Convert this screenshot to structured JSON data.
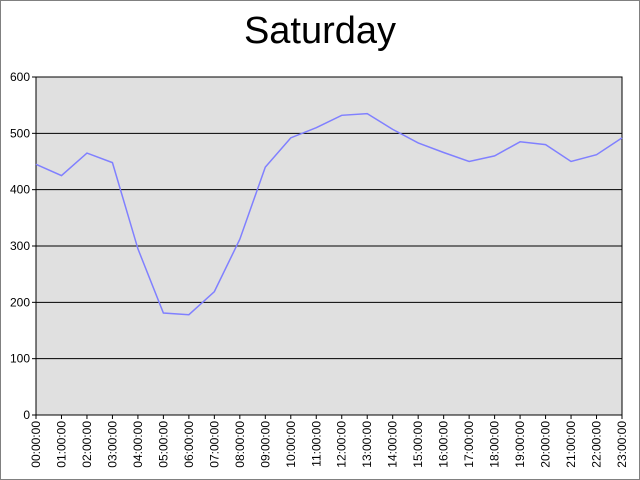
{
  "chart_data": {
    "type": "line",
    "title": "Saturday",
    "xlabel": "",
    "ylabel": "",
    "ylim": [
      0,
      600
    ],
    "yticks": [
      0,
      100,
      200,
      300,
      400,
      500,
      600
    ],
    "grid": true,
    "legend": "none",
    "colors": {
      "series": "#8080ff",
      "plot_background": "#e0e0e0",
      "grid": "#000000"
    },
    "x": [
      "00:00:00",
      "01:00:00",
      "02:00:00",
      "03:00:00",
      "04:00:00",
      "05:00:00",
      "06:00:00",
      "07:00:00",
      "08:00:00",
      "09:00:00",
      "10:00:00",
      "11:00:00",
      "12:00:00",
      "13:00:00",
      "14:00:00",
      "15:00:00",
      "16:00:00",
      "17:00:00",
      "18:00:00",
      "19:00:00",
      "20:00:00",
      "21:00:00",
      "22:00:00",
      "23:00:00"
    ],
    "series": [
      {
        "values": [
          445,
          425,
          465,
          448,
          295,
          181,
          178,
          219,
          312,
          440,
          492,
          510,
          532,
          535,
          507,
          483,
          466,
          450,
          460,
          485,
          480,
          450,
          462,
          492
        ]
      }
    ]
  }
}
